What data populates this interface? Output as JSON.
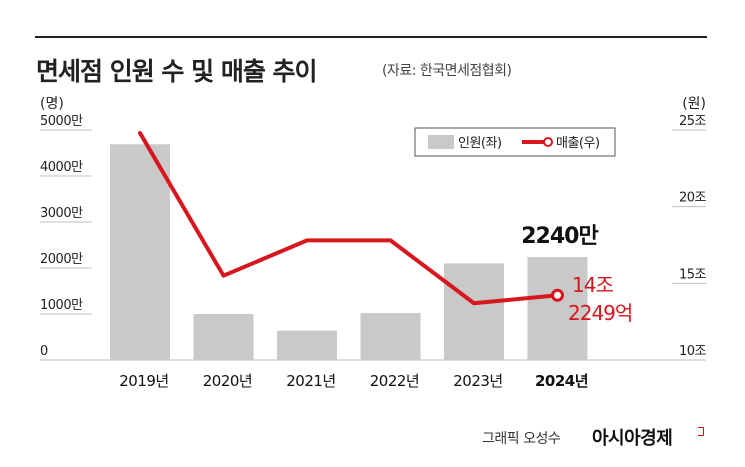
{
  "header": {
    "title": "면세점 인원 수 및 매출 추이",
    "source": "(자료: 한국면세점협회)"
  },
  "footer": {
    "credit": "그래픽 오성수",
    "brand": "아시아경제"
  },
  "colors": {
    "bar": "#c9c9c9",
    "line": "#d7161e",
    "text": "#222222"
  },
  "chart_data": {
    "type": "bar",
    "categories": [
      "2019년",
      "2020년",
      "2021년",
      "2022년",
      "2023년",
      "2024년"
    ],
    "highlight_category": "2024년",
    "left_axis": {
      "unit_label": "(명)",
      "ticks": [
        "0",
        "1000만",
        "2000만",
        "3000만",
        "4000만",
        "5000만"
      ],
      "tick_values": [
        0,
        10000000,
        20000000,
        30000000,
        40000000,
        50000000
      ],
      "ylim": [
        0,
        50000000
      ]
    },
    "right_axis": {
      "unit_label": "(원)",
      "ticks": [
        "10조",
        "15조",
        "20조",
        "25조"
      ],
      "tick_values": [
        10,
        15,
        20,
        25
      ],
      "ylim": [
        10,
        25
      ]
    },
    "series": [
      {
        "name": "인원(좌)",
        "type": "bar",
        "axis": "left",
        "values": [
          46900000,
          10000000,
          6400000,
          10200000,
          21000000,
          22400000
        ]
      },
      {
        "name": "매출(우)",
        "type": "line",
        "axis": "right",
        "values": [
          24.8,
          15.5,
          17.8,
          17.8,
          13.7,
          14.2249
        ]
      }
    ],
    "annotations": {
      "bar_last_label": "2240만",
      "line_last_label_1": "14조",
      "line_last_label_2": "2249억"
    },
    "legend": {
      "placement": "top-right"
    }
  }
}
